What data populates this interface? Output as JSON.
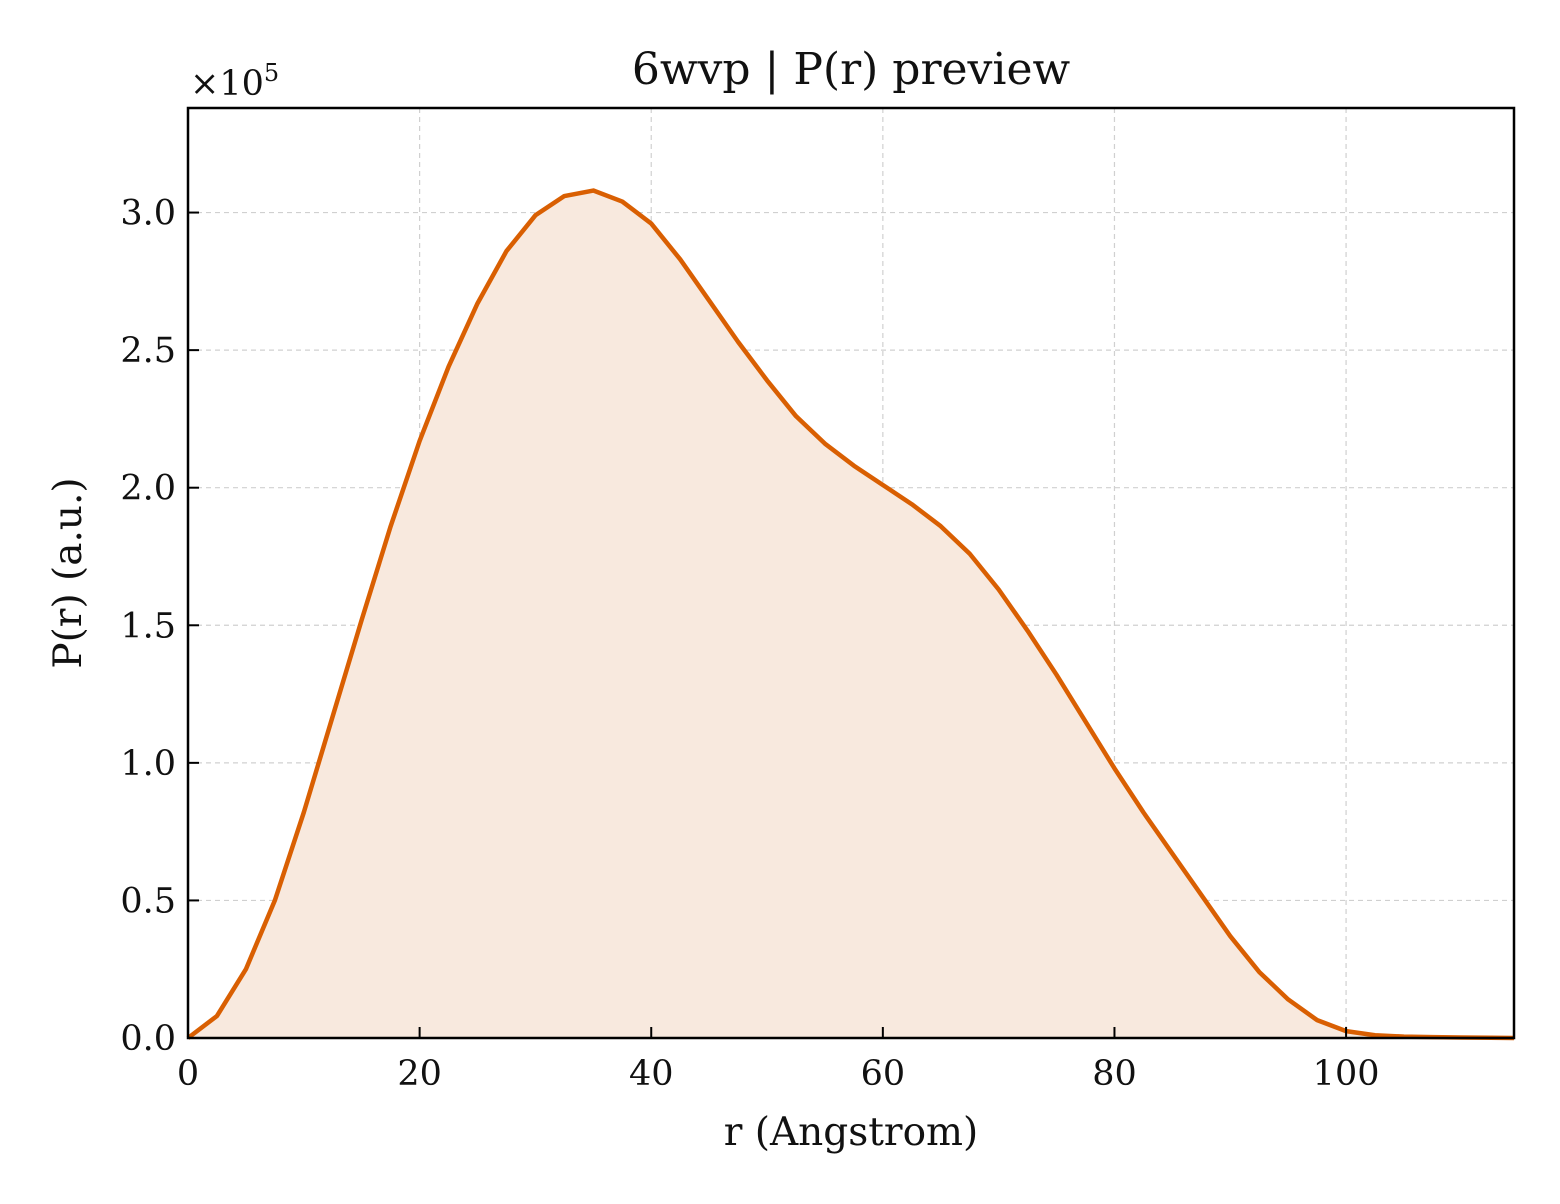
{
  "chart_data": {
    "type": "area",
    "title": "6wvp | P(r) preview",
    "xlabel": "r (Angstrom)",
    "ylabel": "P(r) (a.u.)",
    "y_multiplier_label": "×10",
    "y_multiplier_exponent": "5",
    "xlim": [
      0,
      114.5
    ],
    "ylim": [
      0,
      3.38
    ],
    "x_ticks": [
      0,
      20,
      40,
      60,
      80,
      100
    ],
    "x_tick_labels": [
      "0",
      "20",
      "40",
      "60",
      "80",
      "100"
    ],
    "y_ticks": [
      0,
      0.5,
      1.0,
      1.5,
      2.0,
      2.5,
      3.0
    ],
    "y_tick_labels": [
      "0.0",
      "0.5",
      "1.0",
      "1.5",
      "2.0",
      "2.5",
      "3.0"
    ],
    "grid": true,
    "legend": "none",
    "colors": {
      "line": "#d95f02",
      "fill": "#f8e9de",
      "grid": "#d0d0d0",
      "axes": "#000000"
    },
    "series": [
      {
        "x": [
          0,
          2.5,
          5.0,
          7.5,
          10.0,
          12.5,
          15.0,
          17.5,
          20.0,
          22.5,
          25.0,
          27.5,
          30.0,
          32.5,
          35.0,
          37.5,
          40.0,
          42.5,
          45.0,
          47.5,
          50.0,
          52.5,
          55.0,
          57.5,
          60.0,
          62.5,
          65.0,
          67.5,
          70.0,
          72.5,
          75.0,
          77.5,
          80.0,
          82.5,
          85.0,
          87.5,
          90.0,
          92.5,
          95.0,
          97.5,
          100.0,
          102.5,
          105.0,
          107.5,
          110.0,
          112.5,
          114.5
        ],
        "values": [
          0.0,
          0.08,
          0.25,
          0.5,
          0.82,
          1.17,
          1.52,
          1.86,
          2.17,
          2.44,
          2.67,
          2.86,
          2.99,
          3.06,
          3.08,
          3.04,
          2.96,
          2.83,
          2.68,
          2.53,
          2.39,
          2.26,
          2.16,
          2.08,
          2.01,
          1.94,
          1.86,
          1.76,
          1.63,
          1.48,
          1.32,
          1.15,
          0.98,
          0.82,
          0.67,
          0.52,
          0.37,
          0.24,
          0.14,
          0.065,
          0.025,
          0.01,
          0.005,
          0.003,
          0.002,
          0.001,
          0.0
        ]
      }
    ]
  }
}
